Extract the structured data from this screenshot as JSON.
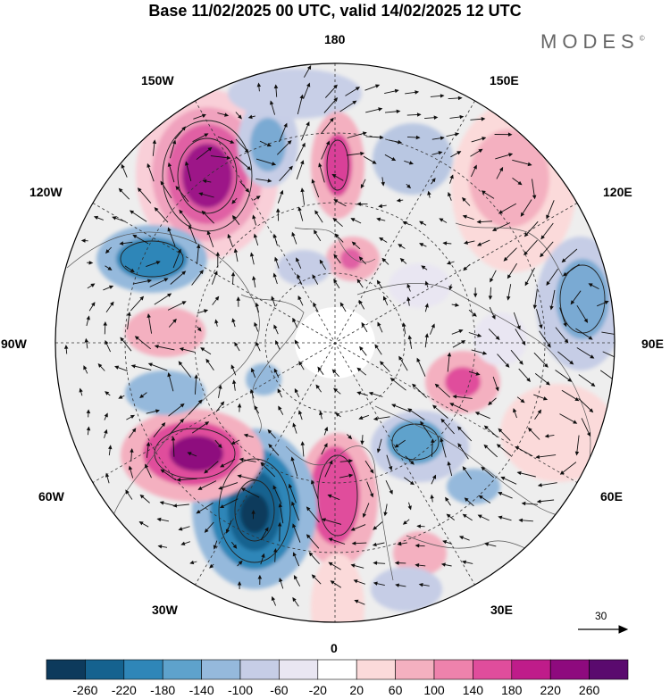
{
  "header": {
    "title": "Base 11/02/2025 00 UTC, valid 14/02/2025 12 UTC",
    "brand": "MODES",
    "brand_mark": "©"
  },
  "map": {
    "projection": "north-polar-stereographic",
    "longitude_labels": {
      "lon_180": "180",
      "lon_150e": "150E",
      "lon_120e": "120E",
      "lon_90e": "90E",
      "lon_60e": "60E",
      "lon_30e": "30E",
      "lon_0": "0",
      "lon_30w": "30W",
      "lon_60w": "60W",
      "lon_90w": "90W",
      "lon_120w": "120W",
      "lon_150w": "150W"
    },
    "vector_reference": {
      "value": "30"
    },
    "colors": {
      "ocean_land_bg": "#eeeeee",
      "coastline": "#555555",
      "grid": "#333333"
    }
  },
  "colorbar": {
    "ticks": [
      "-260",
      "-220",
      "-180",
      "-140",
      "-100",
      "-60",
      "-20",
      "20",
      "60",
      "100",
      "140",
      "180",
      "220",
      "260"
    ],
    "colors": [
      "#0d3a5c",
      "#15628f",
      "#2f86b8",
      "#5ea2cc",
      "#95b9dc",
      "#c6cde6",
      "#e9e6f2",
      "#ffffff",
      "#fbdada",
      "#f4b0c0",
      "#ee82ac",
      "#e04d9c",
      "#bf1c8a",
      "#8e0a7e",
      "#5a0a6e"
    ]
  }
}
